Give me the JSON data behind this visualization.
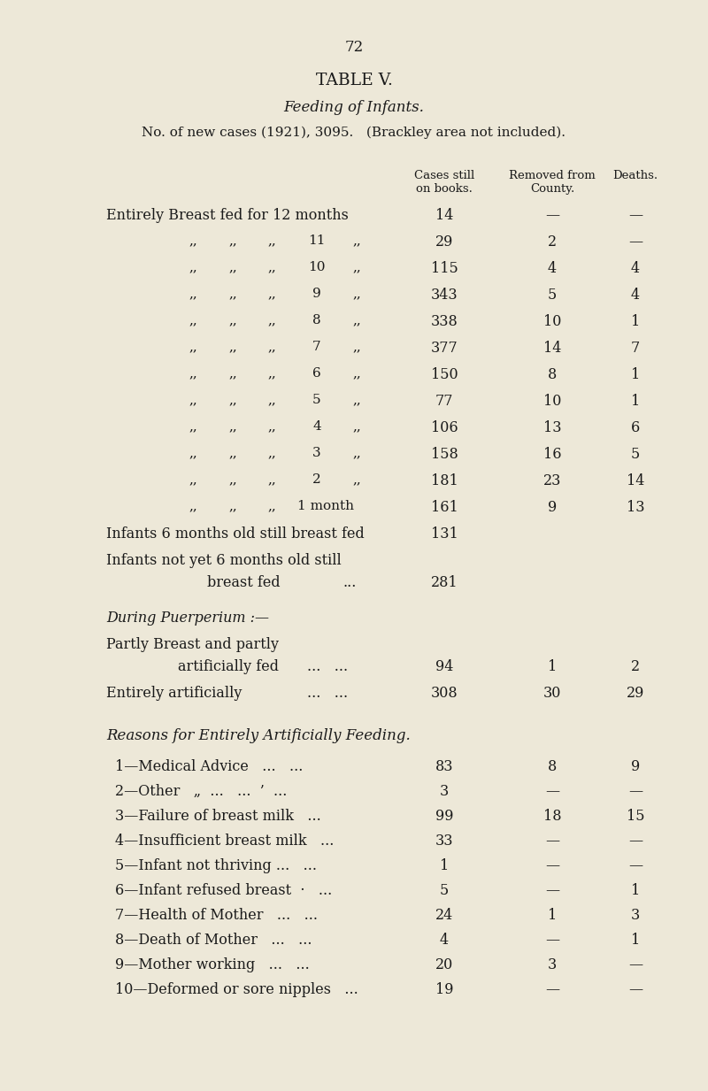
{
  "page_number": "72",
  "title": "TABLE V.",
  "subtitle": "Feeding of Infants.",
  "subtitle2": "No. of new cases (1921), 3095.   (Brackley area not included).",
  "bg_color": "#ede8d8",
  "text_color": "#1a1a1a",
  "main_rows": [
    {
      "label": "Entirely Breast fed for 12 months",
      "months": "12 months",
      "cases": "14",
      "county": "—",
      "deaths": "—",
      "first": true
    },
    {
      "label": "",
      "months": "11",
      "cases": "29",
      "county": "2",
      "deaths": "—",
      "first": false
    },
    {
      "label": "",
      "months": "10",
      "cases": "115",
      "county": "4",
      "deaths": "4",
      "first": false
    },
    {
      "label": "",
      "months": "9",
      "cases": "343",
      "county": "5",
      "deaths": "4",
      "first": false
    },
    {
      "label": "",
      "months": "8",
      "cases": "338",
      "county": "10",
      "deaths": "1",
      "first": false
    },
    {
      "label": "",
      "months": "7",
      "cases": "377",
      "county": "14",
      "deaths": "7",
      "first": false
    },
    {
      "label": "",
      "months": "6",
      "cases": "150",
      "county": "8",
      "deaths": "1",
      "first": false
    },
    {
      "label": "",
      "months": "5",
      "cases": "77",
      "county": "10",
      "deaths": "1",
      "first": false
    },
    {
      "label": "",
      "months": "4",
      "cases": "106",
      "county": "13",
      "deaths": "6",
      "first": false
    },
    {
      "label": "",
      "months": "3",
      "cases": "158",
      "county": "16",
      "deaths": "5",
      "first": false
    },
    {
      "label": "",
      "months": "2",
      "cases": "181",
      "county": "23",
      "deaths": "14",
      "first": false
    },
    {
      "label": "",
      "months": "1 month",
      "cases": "161",
      "county": "9",
      "deaths": "13",
      "first": false
    }
  ],
  "reasons_rows": [
    {
      "label": "1—Medical Advice   ...   ...",
      "cases": "83",
      "county": "8",
      "deaths": "9"
    },
    {
      "label": "2—Other   „  ...   ...  ’  ...",
      "cases": "3",
      "county": "—",
      "deaths": "—"
    },
    {
      "label": "3—Failure of breast milk   ...",
      "cases": "99",
      "county": "18",
      "deaths": "15"
    },
    {
      "label": "4—Insufficient breast milk   ...",
      "cases": "33",
      "county": "—",
      "deaths": "—"
    },
    {
      "label": "5—Infant not thriving ...   ...",
      "cases": "1",
      "county": "—",
      "deaths": "—"
    },
    {
      "label": "6—Infant refused breast  ·   ...",
      "cases": "5",
      "county": "—",
      "deaths": "1"
    },
    {
      "label": "7—Health of Mother   ...   ...",
      "cases": "24",
      "county": "1",
      "deaths": "3"
    },
    {
      "label": "8—Death of Mother   ...   ...",
      "cases": "4",
      "county": "—",
      "deaths": "1"
    },
    {
      "label": "9—Mother working   ...   ...",
      "cases": "20",
      "county": "3",
      "deaths": "—"
    },
    {
      "label": "10—Deformed or sore nipples   ...",
      "cases": "19",
      "county": "—",
      "deaths": "—"
    }
  ]
}
